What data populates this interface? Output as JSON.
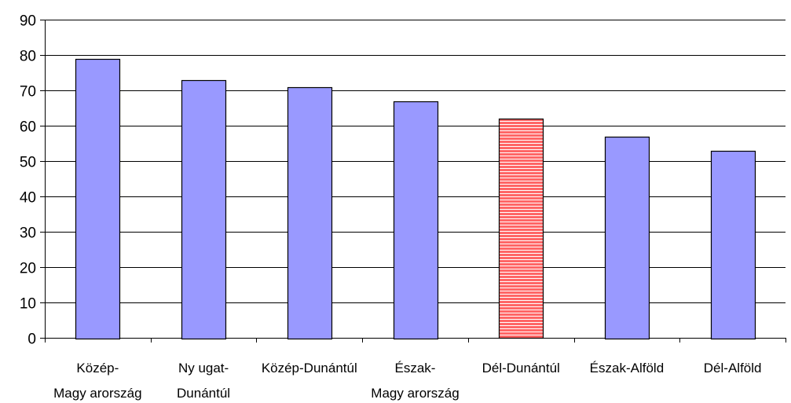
{
  "chart_data": {
    "type": "bar",
    "title": "",
    "xlabel": "",
    "ylabel": "",
    "ylim": [
      0,
      90
    ],
    "yticks": [
      0,
      10,
      20,
      30,
      40,
      50,
      60,
      70,
      80,
      90
    ],
    "grid": true,
    "legend": "none",
    "categories": [
      [
        "Közép-",
        "Magy arország"
      ],
      [
        "Ny ugat-",
        "Dunántúl"
      ],
      [
        "Közép-Dunántúl"
      ],
      [
        "Észak-",
        "Magy arország"
      ],
      [
        "Dél-Dunántúl"
      ],
      [
        "Észak-Alföld"
      ],
      [
        "Dél-Alföld"
      ]
    ],
    "values": [
      79,
      73,
      71,
      67,
      62,
      57,
      53
    ],
    "highlighted_index": 4,
    "colors": {
      "bar": "#9999ff",
      "highlight": "#ff6666",
      "highlight_stripe": "#ffffff",
      "outline": "#000000",
      "grid": "#000000"
    }
  }
}
